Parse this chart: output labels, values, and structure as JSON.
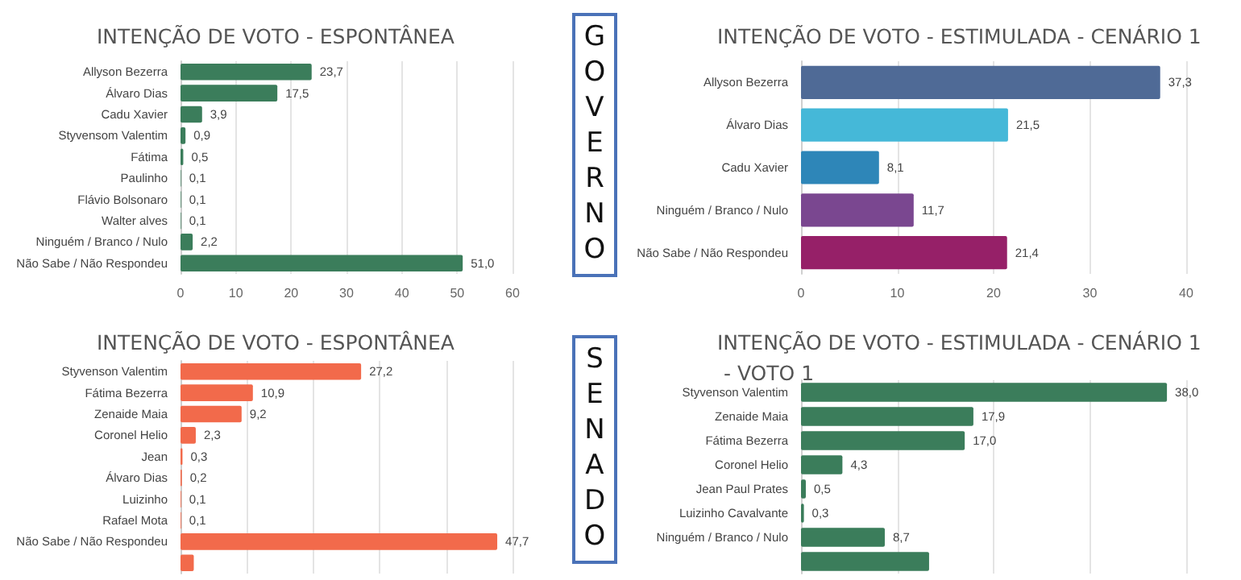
{
  "chart_data": [
    {
      "type": "bar",
      "orientation": "horizontal",
      "title": "INTENÇÃO DE VOTO - ESPONTÂNEA",
      "annotations": [
        "GOVERNO"
      ],
      "categories": [
        "Allyson Bezerra",
        "Álvaro Dias",
        "Cadu Xavier",
        "Styvensom Valentim",
        "Fátima",
        "Paulinho",
        "Flávio Bolsonaro",
        "Walter alves",
        "Ninguém / Branco / Nulo",
        "Não Sabe / Não Respondeu"
      ],
      "values": [
        23.7,
        17.5,
        3.9,
        0.9,
        0.5,
        0.1,
        0.1,
        0.1,
        2.2,
        51.0
      ],
      "value_labels": [
        "23,7",
        "17,5",
        "3,9",
        "0,9",
        "0,5",
        "0,1",
        "0,1",
        "0,1",
        "2,2",
        "51,0"
      ],
      "color": "#3b7d5b",
      "xlim": [
        0,
        60
      ],
      "xticks": [
        0,
        10,
        20,
        30,
        40,
        50,
        60
      ],
      "grid": "x"
    },
    {
      "type": "bar",
      "orientation": "horizontal",
      "title": "INTENÇÃO DE VOTO - ESTIMULADA - CENÁRIO 1",
      "categories": [
        "Allyson Bezerra",
        "Álvaro Dias",
        "Cadu Xavier",
        "Ninguém / Branco / Nulo",
        "Não Sabe / Não Respondeu"
      ],
      "values": [
        37.3,
        21.5,
        8.1,
        11.7,
        21.4
      ],
      "value_labels": [
        "37,3",
        "21,5",
        "8,1",
        "11,7",
        "21,4"
      ],
      "colors": [
        "#4f6a96",
        "#45b8d8",
        "#2e86b8",
        "#7a4790",
        "#962068"
      ],
      "xlim": [
        0,
        40
      ],
      "xticks": [
        0,
        10,
        20,
        30,
        40
      ],
      "grid": "x"
    },
    {
      "type": "bar",
      "orientation": "horizontal",
      "title": "INTENÇÃO DE VOTO - ESPONTÂNEA",
      "annotations": [
        "SENADO"
      ],
      "categories": [
        "Styvenson Valentim",
        "Fátima Bezerra",
        "Zenaide Maia",
        "Coronel Helio",
        "Jean",
        "Álvaro Dias",
        "Luizinho",
        "Rafael Mota",
        "Não Sabe / Não Respondeu",
        null
      ],
      "values": [
        27.2,
        10.9,
        9.2,
        2.3,
        0.3,
        0.2,
        0.1,
        0.1,
        47.7,
        2.0
      ],
      "value_labels": [
        "27,2",
        "10,9",
        "9,2",
        "2,3",
        "0,3",
        "0,2",
        "0,1",
        "0,1",
        "47,7",
        null
      ],
      "color": "#f26a4b",
      "grid": "x",
      "tick_labels": "y"
    },
    {
      "type": "bar",
      "orientation": "horizontal",
      "title": "INTENÇÃO DE VOTO - ESTIMULADA - CENÁRIO 1 - VOTO 1",
      "categories": [
        "Styvenson Valentim",
        "Zenaide Maia",
        "Fátima Bezerra",
        "Coronel Helio",
        "Jean Paul Prates",
        "Luizinho Cavalvante",
        "Ninguém / Branco / Nulo",
        null
      ],
      "values": [
        38.0,
        17.9,
        17.0,
        4.3,
        0.5,
        0.3,
        8.7,
        13.3
      ],
      "value_labels": [
        "38,0",
        "17,9",
        "17,0",
        "4,3",
        "0,5",
        "0,3",
        "8,7",
        null
      ],
      "color": "#3b7d5b",
      "grid": "x",
      "tick_labels": "y"
    }
  ]
}
